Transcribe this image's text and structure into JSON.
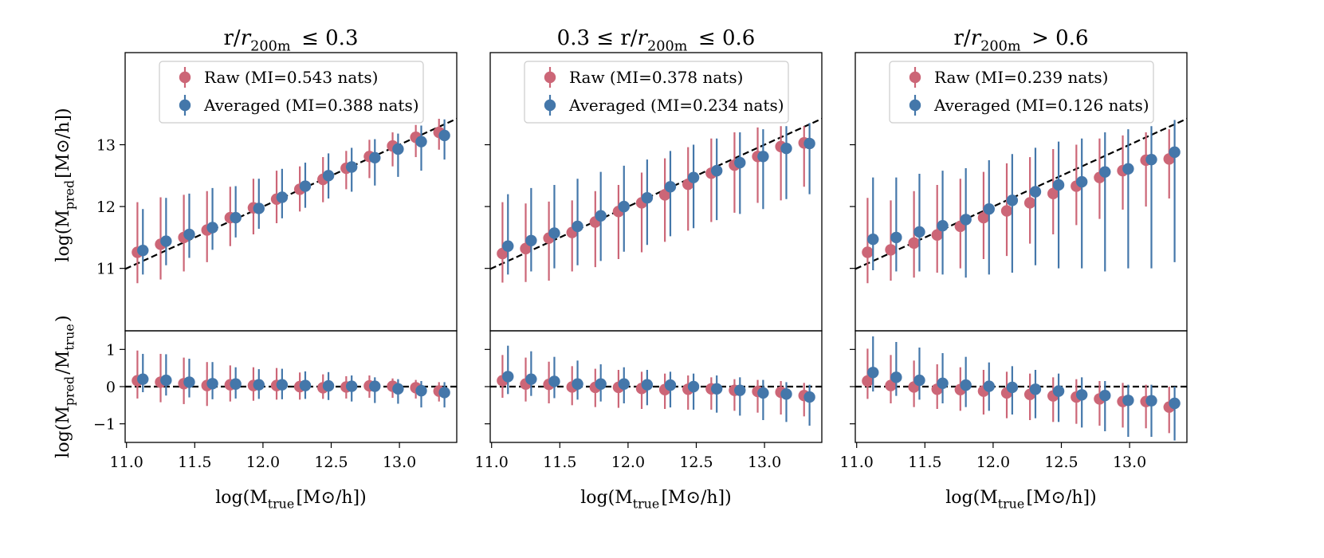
{
  "figure": {
    "xlabel": "log(M_true[M⊙/h])",
    "ylabel_top": "log(M_pred[M⊙/h])",
    "ylabel_bottom": "log(M_pred/M_true)"
  },
  "colors": {
    "raw": "#cc6677",
    "averaged": "#4477aa"
  },
  "chart_data": [
    {
      "type": "scatter",
      "title": "r/r200m ≤ 0.3",
      "legend": {
        "placement": "top-center",
        "raw": "Raw (MI=0.543 nats)",
        "averaged": "Averaged (MI=0.388 nats)"
      },
      "x_raw": [
        11.08,
        11.25,
        11.42,
        11.59,
        11.76,
        11.93,
        12.1,
        12.27,
        12.44,
        12.61,
        12.78,
        12.95,
        13.12,
        13.29
      ],
      "x_avg": [
        11.12,
        11.29,
        11.46,
        11.63,
        11.8,
        11.97,
        12.14,
        12.31,
        12.48,
        12.65,
        12.82,
        12.99,
        13.16,
        13.33
      ],
      "top": {
        "xlim": [
          10.99,
          13.42
        ],
        "ylim": [
          9.99,
          14.49
        ],
        "yticks": [
          11,
          12,
          13
        ],
        "raw": {
          "y": [
            11.26,
            11.39,
            11.5,
            11.62,
            11.82,
            11.98,
            12.12,
            12.28,
            12.44,
            12.62,
            12.81,
            12.98,
            13.12,
            13.2
          ],
          "lo": [
            10.76,
            10.82,
            10.95,
            11.1,
            11.36,
            11.55,
            11.73,
            11.92,
            12.07,
            12.28,
            12.46,
            12.65,
            12.8,
            12.92
          ],
          "hi": [
            12.07,
            12.15,
            12.19,
            12.25,
            12.32,
            12.45,
            12.58,
            12.65,
            12.8,
            12.9,
            13.08,
            13.2,
            13.32,
            13.42
          ]
        },
        "averaged": {
          "y": [
            11.29,
            11.44,
            11.55,
            11.66,
            11.82,
            11.97,
            12.15,
            12.33,
            12.5,
            12.64,
            12.79,
            12.93,
            13.05,
            13.15
          ],
          "lo": [
            10.9,
            11.05,
            11.17,
            11.3,
            11.5,
            11.64,
            11.81,
            11.98,
            12.13,
            12.24,
            12.34,
            12.48,
            12.58,
            12.76
          ],
          "hi": [
            11.96,
            12.14,
            12.21,
            12.3,
            12.33,
            12.45,
            12.61,
            12.71,
            12.86,
            12.95,
            13.09,
            13.18,
            13.31,
            13.41
          ]
        }
      },
      "bottom": {
        "ylim": [
          -1.5,
          1.5
        ],
        "yticks": [
          -1,
          0,
          1
        ],
        "raw": {
          "y": [
            0.16,
            0.12,
            0.08,
            0.03,
            0.05,
            0.03,
            0.03,
            0.0,
            -0.03,
            -0.01,
            0.02,
            0.01,
            -0.03,
            -0.12
          ],
          "lo": [
            -0.32,
            -0.42,
            -0.47,
            -0.52,
            -0.4,
            -0.38,
            -0.35,
            -0.35,
            -0.33,
            -0.32,
            -0.3,
            -0.3,
            -0.32,
            -0.4
          ],
          "hi": [
            0.97,
            0.88,
            0.78,
            0.66,
            0.57,
            0.52,
            0.5,
            0.38,
            0.33,
            0.28,
            0.3,
            0.22,
            0.18,
            0.12
          ]
        },
        "averaged": {
          "y": [
            0.2,
            0.17,
            0.12,
            0.08,
            0.07,
            0.05,
            0.05,
            0.03,
            0.02,
            0.01,
            0.01,
            -0.06,
            -0.11,
            -0.16
          ],
          "lo": [
            -0.15,
            -0.24,
            -0.29,
            -0.34,
            -0.32,
            -0.33,
            -0.34,
            -0.33,
            -0.36,
            -0.4,
            -0.44,
            -0.46,
            -0.56,
            -0.56
          ],
          "hi": [
            0.88,
            0.87,
            0.75,
            0.66,
            0.52,
            0.47,
            0.48,
            0.41,
            0.39,
            0.3,
            0.25,
            0.2,
            0.15,
            0.12
          ]
        }
      }
    },
    {
      "type": "scatter",
      "title": "0.3 ≤ r/r200m ≤ 0.6",
      "legend": {
        "placement": "top-center",
        "raw": "Raw (MI=0.378 nats)",
        "averaged": "Averaged (MI=0.234 nats)"
      },
      "x_raw": [
        11.08,
        11.25,
        11.42,
        11.59,
        11.76,
        11.93,
        12.1,
        12.27,
        12.44,
        12.61,
        12.78,
        12.95,
        13.12,
        13.29
      ],
      "x_avg": [
        11.12,
        11.29,
        11.46,
        11.63,
        11.8,
        11.97,
        12.14,
        12.31,
        12.48,
        12.65,
        12.82,
        12.99,
        13.16,
        13.33
      ],
      "top": {
        "xlim": [
          10.99,
          13.42
        ],
        "ylim": [
          9.99,
          14.49
        ],
        "yticks": [
          11,
          12,
          13
        ],
        "raw": {
          "y": [
            11.24,
            11.32,
            11.49,
            11.58,
            11.75,
            11.92,
            12.06,
            12.19,
            12.36,
            12.54,
            12.67,
            12.81,
            12.97,
            13.03
          ],
          "lo": [
            10.77,
            10.78,
            10.8,
            10.95,
            11.02,
            11.15,
            11.26,
            11.43,
            11.61,
            11.75,
            11.9,
            12.06,
            12.1,
            12.32
          ],
          "hi": [
            12.07,
            12.05,
            12.08,
            12.1,
            12.25,
            12.35,
            12.55,
            12.78,
            12.96,
            13.1,
            13.2,
            13.28,
            13.3,
            13.3
          ]
        },
        "averaged": {
          "y": [
            11.36,
            11.45,
            11.57,
            11.68,
            11.85,
            12.0,
            12.14,
            12.32,
            12.47,
            12.58,
            12.71,
            12.81,
            12.94,
            13.02
          ],
          "lo": [
            10.9,
            10.95,
            11.0,
            11.05,
            11.12,
            11.27,
            11.38,
            11.52,
            11.65,
            11.78,
            11.88,
            11.96,
            12.12,
            12.2
          ],
          "hi": [
            12.2,
            12.3,
            12.35,
            12.45,
            12.56,
            12.66,
            12.76,
            12.9,
            13.0,
            13.1,
            13.2,
            13.25,
            13.3,
            13.35
          ]
        }
      },
      "bottom": {
        "ylim": [
          -1.5,
          1.5
        ],
        "yticks": [
          -1,
          0,
          1
        ],
        "raw": {
          "y": [
            0.16,
            0.07,
            0.06,
            -0.01,
            -0.02,
            -0.02,
            -0.05,
            -0.08,
            -0.07,
            -0.06,
            -0.1,
            -0.13,
            -0.15,
            -0.24
          ],
          "lo": [
            -0.3,
            -0.4,
            -0.45,
            -0.5,
            -0.55,
            -0.57,
            -0.6,
            -0.6,
            -0.62,
            -0.62,
            -0.65,
            -0.7,
            -0.75,
            -0.8
          ],
          "hi": [
            0.85,
            0.78,
            0.67,
            0.55,
            0.48,
            0.45,
            0.4,
            0.35,
            0.3,
            0.25,
            0.2,
            0.18,
            0.15,
            0.1
          ]
        },
        "averaged": {
          "y": [
            0.27,
            0.2,
            0.14,
            0.07,
            0.07,
            0.07,
            0.05,
            0.04,
            0.0,
            -0.06,
            -0.1,
            -0.17,
            -0.2,
            -0.28
          ],
          "lo": [
            -0.2,
            -0.25,
            -0.31,
            -0.35,
            -0.4,
            -0.45,
            -0.5,
            -0.56,
            -0.62,
            -0.7,
            -0.78,
            -0.9,
            -0.95,
            -1.05
          ],
          "hi": [
            1.1,
            0.95,
            0.8,
            0.7,
            0.6,
            0.52,
            0.45,
            0.4,
            0.35,
            0.3,
            0.25,
            0.18,
            0.12,
            0.05
          ]
        }
      }
    },
    {
      "type": "scatter",
      "title": "r/r200m > 0.6",
      "legend": {
        "placement": "top-center",
        "raw": "Raw (MI=0.239 nats)",
        "averaged": "Averaged (MI=0.126 nats)"
      },
      "x_raw": [
        11.08,
        11.25,
        11.42,
        11.59,
        11.76,
        11.93,
        12.1,
        12.27,
        12.44,
        12.61,
        12.78,
        12.95,
        13.12,
        13.29
      ],
      "x_avg": [
        11.12,
        11.29,
        11.46,
        11.63,
        11.8,
        11.97,
        12.14,
        12.31,
        12.48,
        12.65,
        12.82,
        12.99,
        13.16,
        13.33
      ],
      "top": {
        "xlim": [
          10.99,
          13.42
        ],
        "ylim": [
          9.99,
          14.49
        ],
        "yticks": [
          11,
          12,
          13
        ],
        "raw": {
          "y": [
            11.26,
            11.3,
            11.41,
            11.54,
            11.68,
            11.82,
            11.93,
            12.06,
            12.21,
            12.33,
            12.47,
            12.58,
            12.75,
            12.77
          ],
          "lo": [
            10.76,
            10.8,
            10.85,
            10.93,
            11.0,
            11.15,
            11.2,
            11.4,
            11.55,
            11.7,
            11.8,
            11.95,
            12.0,
            12.13
          ],
          "hi": [
            12.14,
            12.1,
            12.25,
            12.35,
            12.45,
            12.56,
            12.7,
            12.8,
            12.93,
            13.0,
            13.1,
            13.15,
            13.2,
            13.25
          ]
        },
        "averaged": {
          "y": [
            11.47,
            11.5,
            11.59,
            11.69,
            11.79,
            11.96,
            12.1,
            12.24,
            12.35,
            12.4,
            12.56,
            12.61,
            12.76,
            12.88
          ],
          "lo": [
            10.97,
            10.95,
            10.95,
            10.9,
            10.85,
            10.9,
            10.93,
            11.05,
            11.0,
            11.0,
            10.95,
            11.0,
            11.0,
            11.1
          ],
          "hi": [
            12.47,
            12.47,
            12.53,
            12.58,
            12.62,
            12.75,
            12.85,
            12.95,
            13.05,
            13.1,
            13.2,
            13.25,
            13.3,
            13.4
          ]
        }
      },
      "bottom": {
        "ylim": [
          -1.5,
          1.5
        ],
        "yticks": [
          -1,
          0,
          1
        ],
        "raw": {
          "y": [
            0.15,
            0.03,
            -0.01,
            -0.07,
            -0.08,
            -0.12,
            -0.17,
            -0.21,
            -0.25,
            -0.28,
            -0.33,
            -0.4,
            -0.4,
            -0.55
          ],
          "lo": [
            -0.33,
            -0.45,
            -0.55,
            -0.6,
            -0.65,
            -0.75,
            -0.85,
            -0.9,
            -0.95,
            -1.0,
            -1.05,
            -1.1,
            -1.12,
            -1.25
          ],
          "hi": [
            1.02,
            0.85,
            0.7,
            0.6,
            0.52,
            0.45,
            0.4,
            0.35,
            0.25,
            0.2,
            0.15,
            0.1,
            0.05,
            0.0
          ]
        },
        "averaged": {
          "y": [
            0.38,
            0.25,
            0.17,
            0.09,
            0.04,
            0.01,
            -0.02,
            -0.07,
            -0.12,
            -0.22,
            -0.24,
            -0.37,
            -0.38,
            -0.45
          ],
          "lo": [
            -0.13,
            -0.25,
            -0.35,
            -0.45,
            -0.55,
            -0.65,
            -0.75,
            -0.85,
            -0.95,
            -1.1,
            -1.2,
            -1.35,
            -1.35,
            -1.45
          ],
          "hi": [
            1.35,
            1.2,
            1.05,
            0.9,
            0.8,
            0.65,
            0.55,
            0.45,
            0.35,
            0.25,
            0.15,
            0.05,
            0.05,
            0.0
          ]
        }
      }
    }
  ]
}
